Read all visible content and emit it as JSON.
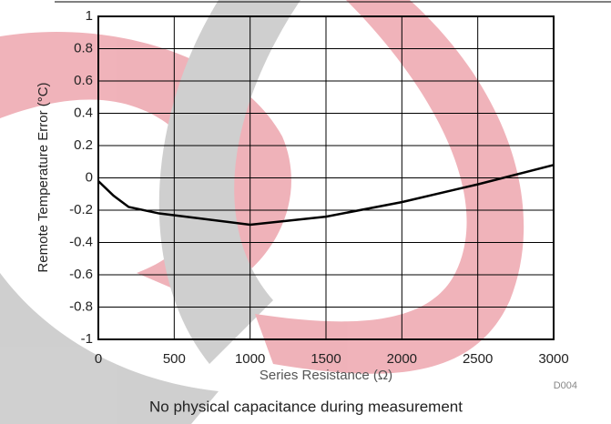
{
  "chart_data": {
    "type": "line",
    "x_label": "Series Resistance (Ω)",
    "y_label": "Remote Temperature Error (°C)",
    "caption": "No physical capacitance during measurement",
    "figure_id": "D004",
    "x": [
      0,
      100,
      200,
      400,
      1000,
      1500,
      2000,
      2500,
      3000
    ],
    "values": [
      -0.02,
      -0.11,
      -0.18,
      -0.22,
      -0.29,
      -0.24,
      -0.15,
      -0.04,
      0.08
    ],
    "color": "#000000",
    "xlim": [
      0,
      3000
    ],
    "xticks": [
      0,
      500,
      1000,
      1500,
      2000,
      2500,
      3000
    ],
    "ylim": [
      -1,
      1
    ],
    "yticks": [
      -1,
      -0.8,
      -0.6,
      -0.4,
      -0.2,
      0,
      0.2,
      0.4,
      0.6,
      0.8,
      1
    ],
    "grid": true
  }
}
